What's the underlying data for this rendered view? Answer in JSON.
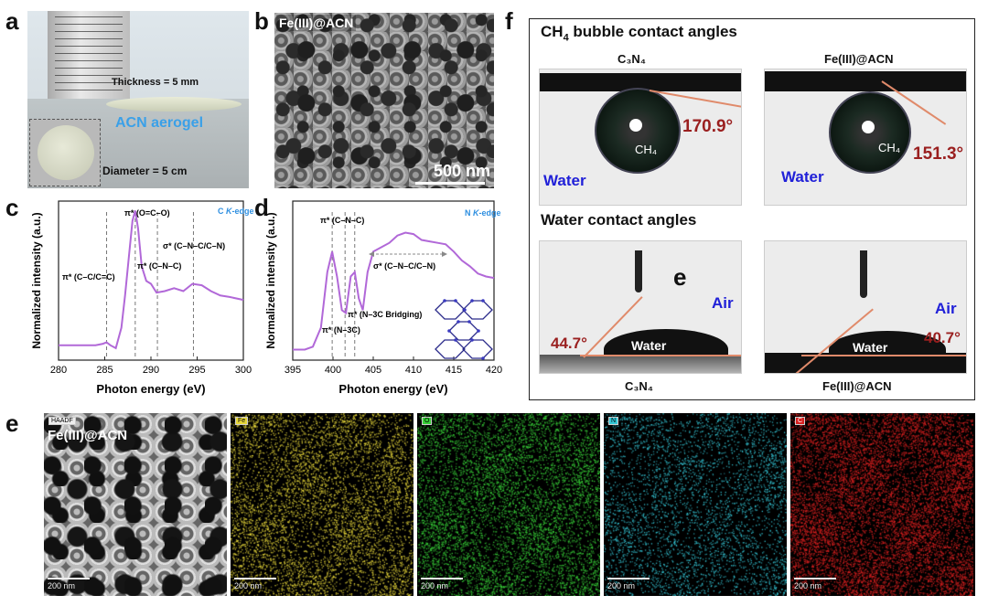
{
  "panels": {
    "a": {
      "label": "a",
      "thickness_text": "Thickness = 5 mm",
      "aerogel_text": "ACN aerogel",
      "diameter_text": "Diameter = 5 cm"
    },
    "b": {
      "label": "b",
      "title": "Fe(III)@ACN",
      "scale": "500 nm"
    },
    "c": {
      "label": "c",
      "edge_label_prefix": "C ",
      "edge_label_k": "K",
      "edge_label_suffix": "-edge",
      "annotations": [
        "π* (C–C/C=C)",
        "π* (O=C–O)",
        "π* (C–N–C)",
        "σ* (C–N–C/C–N)"
      ]
    },
    "d": {
      "label": "d",
      "edge_label_prefix": "N ",
      "edge_label_k": "K",
      "edge_label_suffix": "-edge",
      "annotations": [
        "π* (C–N–C)",
        "π* (N–3C)",
        "π* (N–3C Bridging)",
        "σ* (C–N–C/C–N)"
      ]
    },
    "f": {
      "label": "f",
      "title_ch4_prefix": "CH",
      "title_ch4_sub": "4",
      "title_ch4_suffix": " bubble contact angles",
      "title_water": "Water contact angles",
      "c3n4_label": "C₃N₄",
      "feacn_label": "Fe(III)@ACN",
      "angle_ch4_c3n4": "170.9°",
      "angle_ch4_feacn": "151.3°",
      "angle_water_c3n4": "44.7°",
      "angle_water_feacn": "40.7°",
      "water_word": "Water",
      "air_word": "Air",
      "ch4_word": "CH₄",
      "inner_e": "e"
    },
    "e": {
      "label": "e",
      "title": "Fe(III)@ACN",
      "scale": "200 nm",
      "maps": [
        {
          "tag": "HAADF",
          "color": "#e0e0e0"
        },
        {
          "tag": "Fe",
          "color": "#e8d83a"
        },
        {
          "tag": "O",
          "color": "#38d038"
        },
        {
          "tag": "N",
          "color": "#35c8d8"
        },
        {
          "tag": "C",
          "color": "#d82020"
        }
      ]
    }
  },
  "chart_data": [
    {
      "type": "line",
      "xlabel": "Photon energy (eV)",
      "ylabel": "Normalized intensity (a.u.)",
      "xlim": [
        280,
        300
      ],
      "xticks": [
        280,
        285,
        290,
        295,
        300
      ],
      "series": [
        {
          "x": [
            280,
            282,
            284,
            284.8,
            285.2,
            285.6,
            286.2,
            286.8,
            287.2,
            287.6,
            288.0,
            288.3,
            288.6,
            289.0,
            289.5,
            290.0,
            290.6,
            291.5,
            292.5,
            293.5,
            294.5,
            295.5,
            296.5,
            297.5,
            298.5,
            300
          ],
          "y": [
            0.08,
            0.08,
            0.08,
            0.09,
            0.1,
            0.08,
            0.06,
            0.2,
            0.42,
            0.68,
            0.93,
            1.0,
            0.88,
            0.62,
            0.52,
            0.5,
            0.44,
            0.45,
            0.47,
            0.45,
            0.5,
            0.49,
            0.45,
            0.42,
            0.41,
            0.39
          ]
        }
      ],
      "markers": [
        285.2,
        288.3,
        290.7,
        294.6
      ],
      "color": "#b168d8"
    },
    {
      "type": "line",
      "xlabel": "Photon energy (eV)",
      "ylabel": "Normalized intensity (a.u.)",
      "xlim": [
        395,
        420
      ],
      "xticks": [
        395,
        400,
        405,
        410,
        415,
        420
      ],
      "series": [
        {
          "x": [
            395,
            396.5,
            397.5,
            398.5,
            399.3,
            399.9,
            400.5,
            401.1,
            401.6,
            402.2,
            402.7,
            403.2,
            403.7,
            404.3,
            405,
            406,
            407,
            408,
            409,
            410,
            411,
            412,
            413,
            414,
            415,
            416,
            417,
            418,
            419,
            420
          ],
          "y": [
            0.05,
            0.05,
            0.07,
            0.2,
            0.58,
            0.72,
            0.55,
            0.32,
            0.3,
            0.55,
            0.58,
            0.4,
            0.32,
            0.58,
            0.72,
            0.75,
            0.78,
            0.83,
            0.85,
            0.84,
            0.8,
            0.79,
            0.78,
            0.77,
            0.72,
            0.66,
            0.62,
            0.57,
            0.55,
            0.54
          ]
        }
      ],
      "markers": [
        399.9,
        401.5,
        402.7
      ],
      "color": "#b168d8"
    }
  ]
}
